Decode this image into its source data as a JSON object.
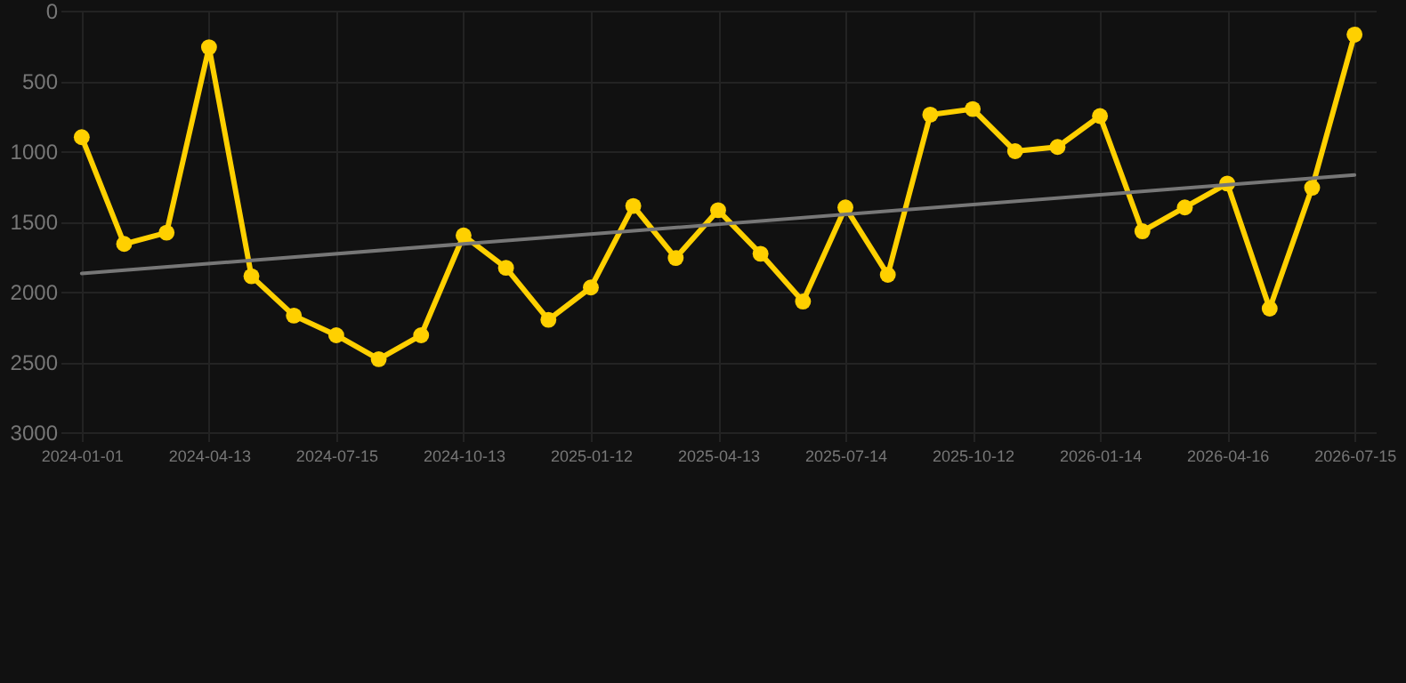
{
  "chart_data": {
    "type": "line",
    "categories": [
      "2024-01-01",
      null,
      null,
      "2024-04-13",
      null,
      null,
      "2024-07-15",
      null,
      null,
      "2024-10-13",
      null,
      null,
      "2025-01-12",
      null,
      null,
      "2025-04-13",
      null,
      null,
      "2025-07-14",
      null,
      null,
      "2025-10-12",
      null,
      null,
      "2026-01-14",
      null,
      null,
      "2026-04-16",
      null,
      null,
      "2026-07-15"
    ],
    "series": [
      {
        "color": "#ffd000",
        "values": [
          900,
          1660,
          1580,
          260,
          1890,
          2170,
          2310,
          2480,
          2310,
          1600,
          1830,
          2200,
          1970,
          1390,
          1760,
          1420,
          1730,
          2070,
          1400,
          1880,
          740,
          700,
          1000,
          970,
          750,
          1570,
          1400,
          1230,
          2120,
          1260,
          170
        ]
      },
      {
        "type": "line",
        "color": "#777777",
        "marker": "none",
        "values": [
          1870,
          null,
          null,
          null,
          null,
          null,
          null,
          null,
          null,
          null,
          null,
          null,
          null,
          null,
          null,
          null,
          null,
          null,
          null,
          null,
          null,
          null,
          null,
          null,
          null,
          null,
          null,
          null,
          null,
          null,
          1170
        ]
      }
    ],
    "ylim": [
      3000,
      0
    ],
    "yticks": [
      0,
      500,
      1000,
      1500,
      2000,
      2500,
      3000
    ],
    "grid": true,
    "marker": "circle",
    "line_style": "solid"
  }
}
